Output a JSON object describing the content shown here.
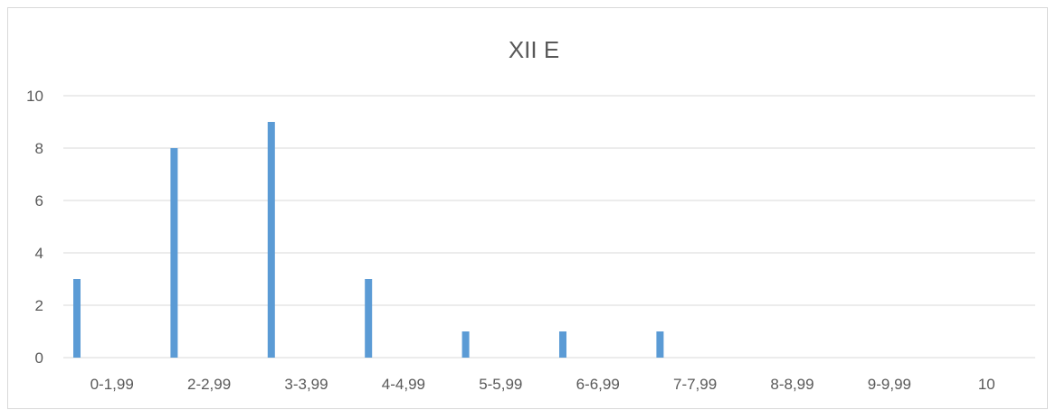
{
  "chart_data": {
    "type": "bar",
    "title": "XII E",
    "xlabel": "",
    "ylabel": "",
    "categories": [
      "0-1,99",
      "2-2,99",
      "3-3,99",
      "4-4,99",
      "5-5,99",
      "6-6,99",
      "7-7,99",
      "8-8,99",
      "9-9,99",
      "10"
    ],
    "values": [
      3,
      8,
      9,
      3,
      1,
      1,
      1,
      0,
      0,
      0
    ],
    "ylim": [
      0,
      10
    ],
    "yticks": [
      "0",
      "2",
      "4",
      "6",
      "8",
      "10"
    ],
    "grid": true,
    "legend": "none",
    "bar_color": "#5b9bd5",
    "grid_color": "#d9d9d9",
    "text_color": "#595959"
  }
}
